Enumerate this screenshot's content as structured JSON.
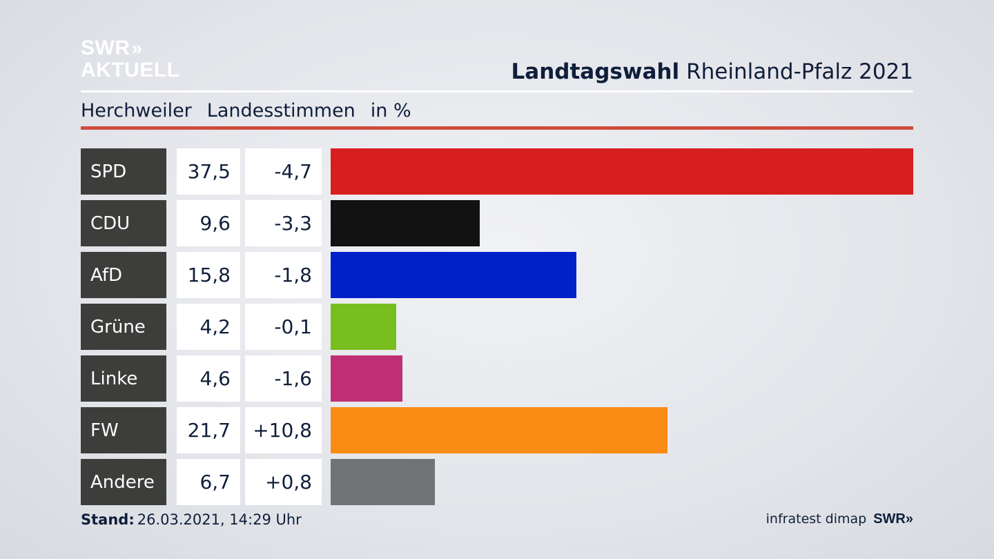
{
  "logo": {
    "line1": "SWR",
    "arrows": "»",
    "line2": "AKTUELL"
  },
  "title": {
    "bold": "Landtagswahl",
    "rest": "Rheinland-Pfalz 2021"
  },
  "subtitle": {
    "place": "Herchweiler",
    "kind": "Landesstimmen",
    "unit": "in %"
  },
  "footer": {
    "stand_label": "Stand:",
    "stand_value": "26.03.2021, 14:29 Uhr",
    "source": "infratest dimap",
    "brand": "SWR",
    "brand_arrows": "»"
  },
  "chart_data": {
    "type": "bar",
    "orientation": "horizontal",
    "title": "Landtagswahl Rheinland-Pfalz 2021",
    "subtitle": "Herchweiler Landesstimmen in %",
    "categories": [
      "SPD",
      "CDU",
      "AfD",
      "Grüne",
      "Linke",
      "FW",
      "Andere"
    ],
    "values": [
      37.5,
      9.6,
      15.8,
      4.2,
      4.6,
      21.7,
      6.7
    ],
    "value_labels": [
      "37,5",
      "9,6",
      "15,8",
      "4,2",
      "4,6",
      "21,7",
      "6,7"
    ],
    "diff_labels": [
      "-4,7",
      "-3,3",
      "-1,8",
      "-0,1",
      "-1,6",
      "+10,8",
      "+0,8"
    ],
    "diffs": [
      -4.7,
      -3.3,
      -1.8,
      -0.1,
      -1.6,
      10.8,
      0.8
    ],
    "colors": [
      "#d71f1f",
      "#121212",
      "#0021c8",
      "#78be1e",
      "#bf2f73",
      "#fa8b14",
      "#727374"
    ],
    "xlim": [
      0,
      37.5
    ]
  }
}
